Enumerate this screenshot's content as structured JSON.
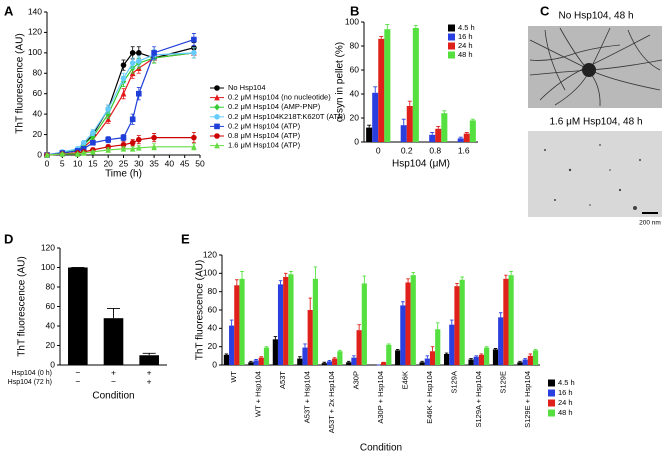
{
  "chart_data": [
    {
      "panel": "A",
      "type": "line",
      "y_label": "ThT fluorescence (AU)",
      "x_label": "Time (h)",
      "x": [
        0,
        5,
        10,
        12,
        15,
        20,
        25,
        28,
        30,
        35,
        48
      ],
      "xlim": [
        0,
        50
      ],
      "xticks": [
        0,
        5,
        10,
        15,
        20,
        25,
        30,
        35,
        40,
        45,
        50
      ],
      "ylim": [
        0,
        140
      ],
      "yticks": [
        0,
        20,
        40,
        60,
        80,
        100,
        120,
        140
      ],
      "legend": "lower right",
      "series": [
        {
          "name": "No Hsp104",
          "color": "#000000",
          "marker": "circle",
          "values": [
            0,
            2,
            4,
            10,
            20,
            45,
            88,
            100,
            100,
            95,
            105
          ],
          "errors": [
            1,
            1,
            2,
            2,
            3,
            4,
            5,
            6,
            6,
            5,
            5
          ]
        },
        {
          "name": "0.2 μM Hsp104 (no nucleotide)",
          "color": "#e41a1c",
          "marker": "triangle",
          "values": [
            0,
            2,
            4,
            8,
            15,
            35,
            60,
            80,
            85,
            95,
            100
          ],
          "errors": [
            1,
            1,
            2,
            2,
            3,
            4,
            5,
            5,
            5,
            5,
            5
          ]
        },
        {
          "name": "0.2 μM Hsp104 (AMP-PNP)",
          "color": "#33cc33",
          "marker": "diamond",
          "values": [
            0,
            2,
            5,
            10,
            18,
            40,
            72,
            85,
            90,
            95,
            100
          ],
          "errors": [
            1,
            1,
            2,
            2,
            3,
            4,
            5,
            5,
            5,
            5,
            5
          ]
        },
        {
          "name": "0.2 μM Hsp104K218T:K620T (ATP)",
          "color": "#66ccff",
          "marker": "circle",
          "values": [
            0,
            3,
            6,
            12,
            22,
            45,
            75,
            90,
            92,
            98,
            100
          ],
          "errors": [
            1,
            1,
            2,
            2,
            3,
            4,
            5,
            5,
            5,
            5,
            5
          ]
        },
        {
          "name": "0.2 μM Hsp104 (ATP)",
          "color": "#1f3fd8",
          "marker": "square",
          "values": [
            0,
            2,
            4,
            6,
            12,
            15,
            17,
            35,
            60,
            100,
            113
          ],
          "errors": [
            1,
            1,
            1,
            2,
            2,
            3,
            3,
            5,
            6,
            6,
            6
          ]
        },
        {
          "name": "0.8 μM Hsp104 (ATP)",
          "color": "#cc0000",
          "marker": "circle",
          "values": [
            0,
            1,
            2,
            3,
            5,
            8,
            10,
            12,
            15,
            17,
            17
          ],
          "errors": [
            1,
            1,
            1,
            1,
            2,
            2,
            3,
            3,
            4,
            4,
            5
          ]
        },
        {
          "name": "1.6 μM Hsp104 (ATP)",
          "color": "#66dd44",
          "marker": "triangle",
          "values": [
            0,
            1,
            1,
            2,
            3,
            5,
            6,
            6,
            7,
            8,
            8
          ],
          "errors": [
            1,
            1,
            1,
            1,
            1,
            2,
            2,
            2,
            2,
            3,
            3
          ]
        }
      ]
    },
    {
      "panel": "B",
      "type": "bar",
      "y_label": "α-syn in pellet (%)",
      "x_label": "Hsp104 (μM)",
      "categories": [
        "0",
        "0.2",
        "0.8",
        "1.6"
      ],
      "ylim": [
        0,
        100
      ],
      "yticks": [
        0,
        20,
        40,
        60,
        80,
        100
      ],
      "legend": "upper right",
      "series": [
        {
          "name": "4.5 h",
          "color": "#000000",
          "values": [
            12,
            0,
            0,
            0
          ],
          "errors": [
            2,
            0,
            0,
            0
          ]
        },
        {
          "name": "16 h",
          "color": "#2a3fe0",
          "values": [
            41,
            14,
            6,
            3
          ],
          "errors": [
            5,
            5,
            2,
            1
          ]
        },
        {
          "name": "24 h",
          "color": "#e0201b",
          "values": [
            86,
            30,
            11,
            7
          ],
          "errors": [
            2,
            4,
            2,
            1
          ]
        },
        {
          "name": "48 h",
          "color": "#55e040",
          "values": [
            94,
            95,
            24,
            18
          ],
          "errors": [
            4,
            2,
            2,
            1
          ]
        }
      ]
    },
    {
      "panel": "D",
      "type": "bar",
      "y_label": "ThT fluorescence (AU)",
      "x_label": "Condition",
      "row_labels": [
        "Hsp104 (0 h)",
        "Hsp104 (72 h)"
      ],
      "rows": [
        [
          "−",
          "+",
          "+"
        ],
        [
          "−",
          "−",
          "+"
        ]
      ],
      "values": [
        100,
        48,
        10
      ],
      "errors": [
        0,
        10,
        2
      ],
      "color": "#000000",
      "ylim": [
        0,
        120
      ],
      "yticks": [
        0,
        20,
        40,
        60,
        80,
        100,
        120
      ]
    },
    {
      "panel": "E",
      "type": "bar",
      "y_label": "ThT fluorescence (AU)",
      "x_label": "Condition",
      "categories": [
        "WT",
        "WT + Hsp104",
        "A53T",
        "A53T + Hsp104",
        "A53T + 2x Hsp104",
        "A30P",
        "A30P + Hsp104",
        "E46K",
        "E46K + Hsp104",
        "S129A",
        "S129A + Hsp104",
        "S129E",
        "S129E + Hsp104"
      ],
      "ylim": [
        0,
        120
      ],
      "yticks": [
        0,
        20,
        40,
        60,
        80,
        100,
        120
      ],
      "legend": "lower right",
      "series": [
        {
          "name": "4.5 h",
          "color": "#000000",
          "values": [
            11,
            3,
            28,
            7,
            2,
            3,
            0,
            16,
            3,
            12,
            6,
            17,
            3
          ],
          "errors": [
            1,
            1,
            3,
            2,
            1,
            1,
            0,
            1,
            1,
            1,
            1,
            1,
            1
          ]
        },
        {
          "name": "16 h",
          "color": "#2a3fe0",
          "values": [
            43,
            5,
            88,
            19,
            4,
            8,
            0,
            65,
            7,
            44,
            9,
            52,
            6
          ],
          "errors": [
            6,
            1,
            4,
            4,
            1,
            2,
            0,
            4,
            3,
            5,
            1,
            5,
            1
          ]
        },
        {
          "name": "24 h",
          "color": "#e0201b",
          "values": [
            87,
            8,
            96,
            60,
            7,
            38,
            3,
            90,
            15,
            86,
            11,
            94,
            10
          ],
          "errors": [
            6,
            1,
            4,
            13,
            1,
            6,
            0,
            4,
            5,
            3,
            1,
            4,
            2
          ]
        },
        {
          "name": "48 h",
          "color": "#55e040",
          "values": [
            94,
            19,
            99,
            94,
            15,
            89,
            22,
            98,
            39,
            93,
            19,
            98,
            16
          ],
          "errors": [
            8,
            1,
            3,
            13,
            1,
            8,
            1,
            3,
            7,
            3,
            1,
            4,
            1
          ]
        }
      ]
    }
  ],
  "panel_c": {
    "label": "C",
    "images": [
      {
        "caption": "No Hsp104, 48 h"
      },
      {
        "caption": "1.6 μM Hsp104, 48 h"
      }
    ],
    "scale_bar": "200 nm"
  }
}
